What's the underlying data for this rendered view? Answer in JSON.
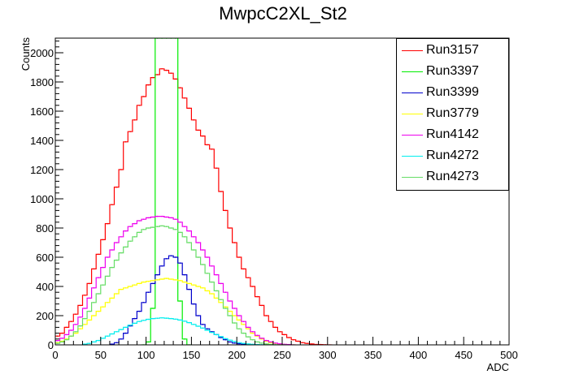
{
  "chart_data": {
    "type": "line",
    "title": "MwpcC2XL_St2",
    "xlabel": "ADC",
    "ylabel": "Counts",
    "xlim": [
      0,
      500
    ],
    "ylim": [
      0,
      2100
    ],
    "x_ticks": [
      "0",
      "50",
      "100",
      "150",
      "200",
      "250",
      "300",
      "350",
      "400",
      "450",
      "500"
    ],
    "y_ticks": [
      "0",
      "200",
      "400",
      "600",
      "800",
      "1000",
      "1200",
      "1400",
      "1600",
      "1800",
      "2000"
    ],
    "grid": false,
    "legend_position": "top-right",
    "bin_width": 5,
    "series": [
      {
        "name": "Run3157",
        "color": "#ff0000",
        "x": [
          0,
          5,
          10,
          15,
          20,
          25,
          30,
          35,
          40,
          45,
          50,
          55,
          60,
          65,
          70,
          75,
          80,
          85,
          90,
          95,
          100,
          105,
          110,
          115,
          120,
          125,
          130,
          135,
          140,
          145,
          150,
          155,
          160,
          165,
          170,
          175,
          180,
          185,
          190,
          195,
          200,
          205,
          210,
          215,
          220,
          225,
          230,
          235,
          240,
          245,
          250,
          255,
          260,
          265,
          270,
          275,
          280,
          285,
          290,
          295,
          300
        ],
        "values": [
          60,
          80,
          120,
          160,
          210,
          270,
          340,
          420,
          520,
          620,
          720,
          830,
          960,
          1080,
          1200,
          1390,
          1460,
          1540,
          1640,
          1700,
          1780,
          1830,
          1850,
          1890,
          1880,
          1860,
          1820,
          1760,
          1690,
          1620,
          1540,
          1470,
          1430,
          1370,
          1340,
          1210,
          1050,
          920,
          800,
          700,
          600,
          520,
          460,
          400,
          330,
          270,
          200,
          160,
          120,
          90,
          70,
          50,
          35,
          25,
          15,
          10,
          6,
          3,
          2,
          1,
          0
        ]
      },
      {
        "name": "Run3397",
        "color": "#00ee00",
        "x": [
          95,
          100,
          105,
          110,
          115,
          120,
          125,
          130,
          135,
          140,
          145
        ],
        "values": [
          0,
          20,
          250,
          2100,
          2100,
          2100,
          2100,
          2100,
          300,
          40,
          0
        ]
      },
      {
        "name": "Run3399",
        "color": "#0000cc",
        "x": [
          60,
          65,
          70,
          75,
          80,
          85,
          90,
          95,
          100,
          105,
          110,
          115,
          120,
          125,
          130,
          135,
          140,
          145,
          150,
          155,
          160,
          165,
          170,
          175,
          180,
          185,
          190,
          195,
          200,
          205,
          210,
          215
        ],
        "values": [
          5,
          15,
          40,
          80,
          130,
          180,
          230,
          290,
          360,
          420,
          480,
          540,
          590,
          610,
          600,
          560,
          480,
          380,
          280,
          200,
          140,
          110,
          90,
          70,
          50,
          35,
          20,
          12,
          8,
          5,
          3,
          1
        ]
      },
      {
        "name": "Run3779",
        "color": "#ffff00",
        "x": [
          0,
          5,
          10,
          15,
          20,
          25,
          30,
          35,
          40,
          45,
          50,
          55,
          60,
          65,
          70,
          75,
          80,
          85,
          90,
          95,
          100,
          105,
          110,
          115,
          120,
          125,
          130,
          135,
          140,
          145,
          150,
          155,
          160,
          165,
          170,
          175,
          180,
          185,
          190,
          195,
          200,
          205,
          210,
          215,
          220,
          225,
          230,
          235,
          240,
          245,
          250,
          255,
          260
        ],
        "values": [
          15,
          25,
          40,
          60,
          80,
          110,
          140,
          170,
          200,
          230,
          260,
          290,
          320,
          350,
          380,
          390,
          400,
          410,
          420,
          430,
          435,
          440,
          445,
          450,
          455,
          450,
          445,
          440,
          430,
          420,
          410,
          400,
          390,
          370,
          350,
          320,
          290,
          260,
          230,
          200,
          170,
          140,
          110,
          80,
          60,
          40,
          25,
          15,
          10,
          5,
          3,
          1,
          0
        ]
      },
      {
        "name": "Run4142",
        "color": "#ee00ee",
        "x": [
          0,
          5,
          10,
          15,
          20,
          25,
          30,
          35,
          40,
          45,
          50,
          55,
          60,
          65,
          70,
          75,
          80,
          85,
          90,
          95,
          100,
          105,
          110,
          115,
          120,
          125,
          130,
          135,
          140,
          145,
          150,
          155,
          160,
          165,
          170,
          175,
          180,
          185,
          190,
          195,
          200,
          205,
          210,
          215,
          220,
          225,
          230,
          235,
          240,
          245,
          250,
          255,
          260
        ],
        "values": [
          30,
          45,
          70,
          100,
          140,
          190,
          250,
          320,
          390,
          460,
          530,
          600,
          650,
          700,
          740,
          780,
          810,
          830,
          850,
          860,
          870,
          875,
          880,
          880,
          875,
          870,
          860,
          840,
          810,
          780,
          740,
          700,
          650,
          600,
          540,
          480,
          420,
          360,
          300,
          250,
          200,
          160,
          120,
          90,
          65,
          45,
          30,
          20,
          12,
          7,
          4,
          2,
          0
        ]
      },
      {
        "name": "Run4272",
        "color": "#00eeee",
        "x": [
          30,
          35,
          40,
          45,
          50,
          55,
          60,
          65,
          70,
          75,
          80,
          85,
          90,
          95,
          100,
          105,
          110,
          115,
          120,
          125,
          130,
          135,
          140,
          145,
          150,
          155,
          160,
          165,
          170,
          175,
          180,
          185,
          190,
          195,
          200,
          205,
          210,
          215,
          220,
          225,
          230,
          235,
          240
        ],
        "values": [
          5,
          10,
          20,
          30,
          45,
          60,
          75,
          90,
          105,
          120,
          135,
          148,
          160,
          168,
          175,
          180,
          182,
          185,
          183,
          180,
          176,
          170,
          162,
          152,
          140,
          128,
          115,
          100,
          85,
          70,
          56,
          43,
          32,
          23,
          15,
          10,
          6,
          4,
          2,
          1,
          1,
          0,
          0
        ]
      },
      {
        "name": "Run4273",
        "color": "#66dd66",
        "x": [
          0,
          5,
          10,
          15,
          20,
          25,
          30,
          35,
          40,
          45,
          50,
          55,
          60,
          65,
          70,
          75,
          80,
          85,
          90,
          95,
          100,
          105,
          110,
          115,
          120,
          125,
          130,
          135,
          140,
          145,
          150,
          155,
          160,
          165,
          170,
          175,
          180,
          185,
          190,
          195,
          200,
          205,
          210,
          215,
          220,
          225,
          230,
          235,
          240,
          245,
          250
        ],
        "values": [
          10,
          20,
          35,
          60,
          90,
          130,
          180,
          230,
          290,
          350,
          410,
          470,
          530,
          580,
          630,
          670,
          710,
          740,
          770,
          790,
          800,
          805,
          810,
          815,
          810,
          800,
          790,
          770,
          740,
          700,
          650,
          600,
          550,
          490,
          430,
          370,
          310,
          250,
          200,
          150,
          110,
          80,
          55,
          35,
          20,
          12,
          6,
          3,
          1,
          0,
          0
        ]
      }
    ]
  }
}
